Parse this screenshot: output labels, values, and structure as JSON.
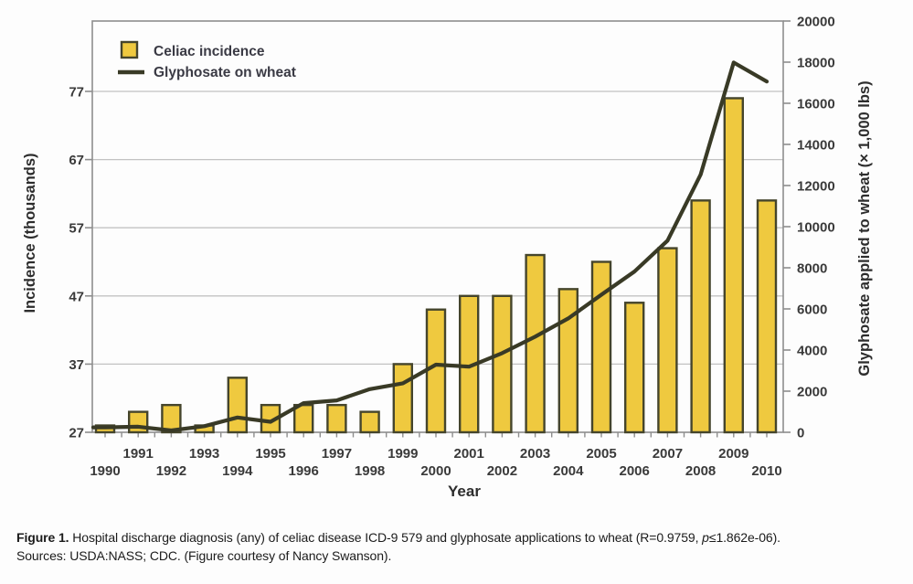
{
  "chart_data": {
    "type": "bar",
    "combo": "bar+line",
    "title": "",
    "categories": [
      1990,
      1991,
      1992,
      1993,
      1994,
      1995,
      1996,
      1997,
      1998,
      1999,
      2000,
      2001,
      2002,
      2003,
      2004,
      2005,
      2006,
      2007,
      2008,
      2009,
      2010
    ],
    "series": [
      {
        "name": "Celiac incidence",
        "type": "bar",
        "axis": "left",
        "values": [
          28,
          30,
          31,
          28,
          35,
          31,
          31,
          31,
          30,
          37,
          45,
          47,
          47,
          53,
          48,
          52,
          46,
          54,
          61,
          76,
          61
        ]
      },
      {
        "name": "Glyphosate on wheat",
        "type": "line",
        "axis": "right",
        "values": [
          240,
          270,
          90,
          300,
          720,
          510,
          1420,
          1550,
          2100,
          2380,
          3290,
          3190,
          3850,
          4650,
          5540,
          6690,
          7820,
          9320,
          12530,
          17980,
          17060
        ]
      }
    ],
    "left_axis": {
      "label": "Incidence (thousands)",
      "ticks": [
        27,
        37,
        47,
        57,
        67,
        77
      ],
      "range": [
        27,
        87.3
      ]
    },
    "right_axis": {
      "label": "Glyphosate applied to wheat (× 1,000 lbs)",
      "ticks": [
        0,
        2000,
        4000,
        6000,
        8000,
        10000,
        12000,
        14000,
        16000,
        18000,
        20000
      ],
      "range": [
        0,
        20000
      ]
    },
    "x_axis": {
      "label": "Year"
    },
    "grid": "horizontal",
    "legend_position": "top-left-inside"
  },
  "caption": {
    "figure_label": "Figure 1.",
    "text": " Hospital discharge diagnosis (any) of celiac disease ICD-9 579 and glyphosate applications to wheat (R=0.9759, ",
    "stat_italic": "p",
    "stat_rest": "≤1.862e-06).",
    "sources": "Sources: USDA:NASS; CDC. (Figure courtesy of Nancy Swanson)."
  },
  "colors": {
    "bar_fill": "#efc93f",
    "bar_stroke": "#45452c",
    "line": "#393a26",
    "grid": "#c2c2c2",
    "spine": "#8e8e8e",
    "tick_text": "#3a3a3a"
  }
}
